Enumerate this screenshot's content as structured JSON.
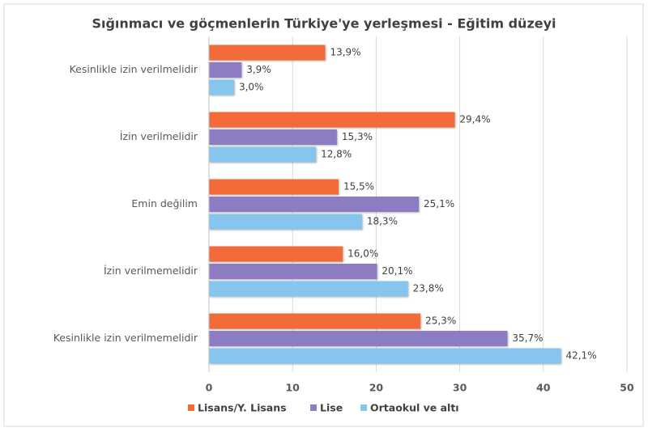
{
  "chart_data": {
    "type": "hbar",
    "title": "Sığınmacı ve göçmenlerin Türkiye'ye yerleşmesi - Eğitim düzeyi",
    "categories": [
      "Kesinlikle izin verilmelidir",
      "İzin verilmelidir",
      "Emin değilim",
      "İzin verilmemelidir",
      "Kesinlikle izin verilmemelidir"
    ],
    "series": [
      {
        "name": "Lisans/Y. Lisans",
        "color": "#f26b38",
        "values": [
          13.9,
          29.4,
          15.5,
          16.0,
          25.3
        ],
        "value_labels": [
          "13,9%",
          "29,4%",
          "15,5%",
          "16,0%",
          "25,3%"
        ]
      },
      {
        "name": "Lise",
        "color": "#8e7cc3",
        "values": [
          3.9,
          15.3,
          25.1,
          20.1,
          35.7
        ],
        "value_labels": [
          "3,9%",
          "15,3%",
          "25,1%",
          "20,1%",
          "35,7%"
        ]
      },
      {
        "name": "Ortaokul ve altı",
        "color": "#85c5ee",
        "values": [
          3.0,
          12.8,
          18.3,
          23.8,
          42.1
        ],
        "value_labels": [
          "3,0%",
          "12,8%",
          "18,3%",
          "23,8%",
          "42,1%"
        ]
      }
    ],
    "xlim": [
      0,
      50
    ],
    "xticks": [
      0,
      10,
      20,
      30,
      40,
      50
    ],
    "grid": true,
    "legend": "bottom"
  }
}
